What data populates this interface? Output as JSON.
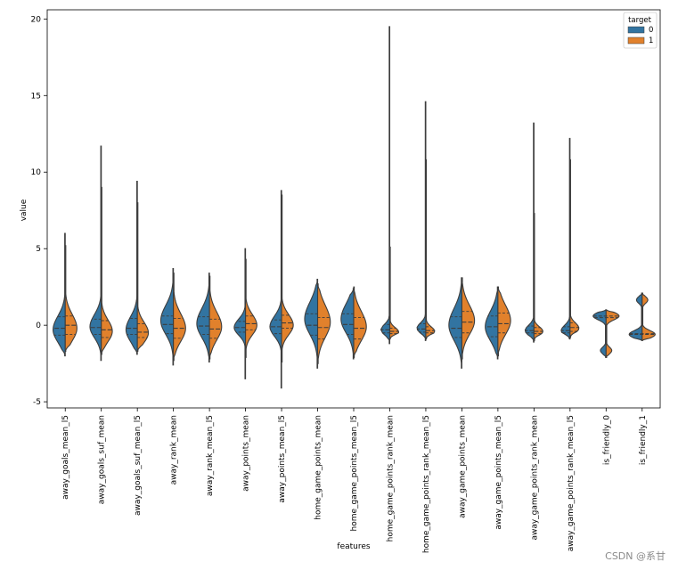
{
  "chart_data": {
    "type": "violin",
    "split": true,
    "inner": "quartile",
    "xlabel": "features",
    "ylabel": "value",
    "ylim": [
      -5.4,
      20.6
    ],
    "yticks": [
      -5,
      0,
      5,
      10,
      15,
      20
    ],
    "legend": {
      "title": "target",
      "position": "top-right",
      "entries": [
        "0",
        "1"
      ]
    },
    "colors": {
      "0": "#3274a1",
      "1": "#e1812c",
      "edge": "#3d3d3d"
    },
    "categories": [
      "away_goals_mean_l5",
      "away_goals_suf_mean",
      "away_goals_suf_mean_l5",
      "away_rank_mean",
      "away_rank_mean_l5",
      "away_points_mean",
      "away_points_mean_l5",
      "home_game_points_mean",
      "home_game_points_mean_l5",
      "home_game_points_rank_mean",
      "home_game_points_rank_mean_l5",
      "away_game_points_mean",
      "away_game_points_mean_l5",
      "away_game_points_rank_mean",
      "away_game_points_rank_mean_l5",
      "is_friendly_0",
      "is_friendly_1"
    ],
    "series": [
      {
        "name": "0",
        "violins": [
          {
            "min": -2.0,
            "max": 6.0,
            "q1": -0.65,
            "median": -0.2,
            "q3": 0.55,
            "mode": -0.3,
            "width": 0.75,
            "spread": 0.9
          },
          {
            "min": -2.3,
            "max": 11.7,
            "q1": -0.6,
            "median": -0.15,
            "q3": 0.4,
            "mode": -0.1,
            "width": 0.7,
            "spread": 0.8
          },
          {
            "min": -1.9,
            "max": 9.4,
            "q1": -0.6,
            "median": -0.2,
            "q3": 0.45,
            "mode": -0.3,
            "width": 0.7,
            "spread": 0.85
          },
          {
            "min": -2.6,
            "max": 3.7,
            "q1": -0.55,
            "median": 0.05,
            "q3": 0.6,
            "mode": 0.3,
            "width": 0.78,
            "spread": 1.0
          },
          {
            "min": -2.4,
            "max": 3.4,
            "q1": -0.6,
            "median": -0.05,
            "q3": 0.55,
            "mode": 0.1,
            "width": 0.78,
            "spread": 1.0
          },
          {
            "min": -3.5,
            "max": 5.0,
            "q1": -0.45,
            "median": -0.15,
            "q3": 0.25,
            "mode": -0.15,
            "width": 0.7,
            "spread": 0.55
          },
          {
            "min": -4.1,
            "max": 8.8,
            "q1": -0.55,
            "median": -0.1,
            "q3": 0.35,
            "mode": -0.1,
            "width": 0.72,
            "spread": 0.7
          },
          {
            "min": -2.8,
            "max": 3.0,
            "q1": -0.65,
            "median": 0.0,
            "q3": 0.75,
            "mode": 0.4,
            "width": 0.8,
            "spread": 1.1
          },
          {
            "min": -2.2,
            "max": 2.4,
            "q1": -0.6,
            "median": 0.05,
            "q3": 0.75,
            "mode": 0.4,
            "width": 0.78,
            "spread": 1.0
          },
          {
            "min": -1.2,
            "max": 19.5,
            "q1": -0.5,
            "median": -0.3,
            "q3": 0.05,
            "mode": -0.3,
            "width": 0.55,
            "spread": 0.35
          },
          {
            "min": -1.0,
            "max": 14.6,
            "q1": -0.45,
            "median": -0.25,
            "q3": 0.1,
            "mode": -0.2,
            "width": 0.55,
            "spread": 0.35
          },
          {
            "min": -2.8,
            "max": 3.1,
            "q1": -0.8,
            "median": -0.2,
            "q3": 0.55,
            "mode": 0.0,
            "width": 0.8,
            "spread": 1.1
          },
          {
            "min": -2.2,
            "max": 2.5,
            "q1": -0.75,
            "median": -0.1,
            "q3": 0.6,
            "mode": -0.1,
            "width": 0.78,
            "spread": 1.0
          },
          {
            "min": -1.1,
            "max": 13.2,
            "q1": -0.5,
            "median": -0.35,
            "q3": -0.05,
            "mode": -0.35,
            "width": 0.55,
            "spread": 0.35
          },
          {
            "min": -0.9,
            "max": 12.2,
            "q1": -0.5,
            "median": -0.35,
            "q3": -0.1,
            "mode": -0.35,
            "width": 0.55,
            "spread": 0.35
          }
        ]
      },
      {
        "name": "1",
        "violins": [
          {
            "min": -1.7,
            "max": 5.2,
            "q1": -0.6,
            "median": 0.0,
            "q3": 0.6,
            "mode": -0.2,
            "width": 0.72,
            "spread": 0.9
          },
          {
            "min": -1.9,
            "max": 9.0,
            "q1": -0.8,
            "median": -0.3,
            "q3": 0.3,
            "mode": -0.4,
            "width": 0.68,
            "spread": 0.75
          },
          {
            "min": -1.7,
            "max": 8.0,
            "q1": -0.8,
            "median": -0.45,
            "q3": 0.1,
            "mode": -0.5,
            "width": 0.68,
            "spread": 0.7
          },
          {
            "min": -2.3,
            "max": 3.4,
            "q1": -0.85,
            "median": -0.2,
            "q3": 0.45,
            "mode": -0.2,
            "width": 0.75,
            "spread": 0.95
          },
          {
            "min": -2.2,
            "max": 3.2,
            "q1": -0.85,
            "median": -0.25,
            "q3": 0.4,
            "mode": -0.1,
            "width": 0.75,
            "spread": 0.95
          },
          {
            "min": -2.1,
            "max": 4.3,
            "q1": -0.3,
            "median": 0.1,
            "q3": 0.6,
            "mode": 0.0,
            "width": 0.7,
            "spread": 0.7
          },
          {
            "min": -2.4,
            "max": 8.5,
            "q1": -0.2,
            "median": 0.15,
            "q3": 0.65,
            "mode": 0.0,
            "width": 0.72,
            "spread": 0.7
          },
          {
            "min": -2.5,
            "max": 2.7,
            "q1": -0.9,
            "median": -0.15,
            "q3": 0.5,
            "mode": 0.2,
            "width": 0.78,
            "spread": 1.1
          },
          {
            "min": -2.1,
            "max": 2.5,
            "q1": -0.9,
            "median": -0.2,
            "q3": 0.5,
            "mode": -0.1,
            "width": 0.78,
            "spread": 1.0
          },
          {
            "min": -0.9,
            "max": 5.1,
            "q1": -0.55,
            "median": -0.4,
            "q3": -0.2,
            "mode": -0.45,
            "width": 0.55,
            "spread": 0.3
          },
          {
            "min": -0.9,
            "max": 10.8,
            "q1": -0.5,
            "median": -0.35,
            "q3": -0.1,
            "mode": -0.4,
            "width": 0.55,
            "spread": 0.3
          },
          {
            "min": -2.2,
            "max": 3.1,
            "q1": -0.5,
            "median": 0.2,
            "q3": 0.9,
            "mode": 0.3,
            "width": 0.78,
            "spread": 1.0
          },
          {
            "min": -2.0,
            "max": 2.5,
            "q1": -0.5,
            "median": 0.1,
            "q3": 0.8,
            "mode": 0.3,
            "width": 0.78,
            "spread": 1.0
          },
          {
            "min": -1.0,
            "max": 7.3,
            "q1": -0.55,
            "median": -0.4,
            "q3": -0.15,
            "mode": -0.4,
            "width": 0.55,
            "spread": 0.3
          },
          {
            "min": -0.8,
            "max": 10.8,
            "q1": -0.4,
            "median": -0.15,
            "q3": 0.15,
            "mode": -0.2,
            "width": 0.55,
            "spread": 0.35
          }
        ]
      }
    ],
    "friendly_violins": [
      {
        "category": "is_friendly_0",
        "min": -2.1,
        "max": 1.0,
        "lines": [
          0.6,
          0.5
        ],
        "lobes": [
          {
            "center": 0.6,
            "width": 0.8,
            "spread": 0.25
          },
          {
            "center": -1.65,
            "width": 0.35,
            "spread": 0.22
          }
        ]
      },
      {
        "category": "is_friendly_1",
        "min": -1.0,
        "max": 2.1,
        "lines": [
          -0.6,
          -0.55
        ],
        "lobes": [
          {
            "center": -0.6,
            "width": 0.8,
            "spread": 0.25
          },
          {
            "center": 1.65,
            "width": 0.35,
            "spread": 0.22
          }
        ]
      }
    ]
  },
  "watermark": "CSDN @系甘"
}
